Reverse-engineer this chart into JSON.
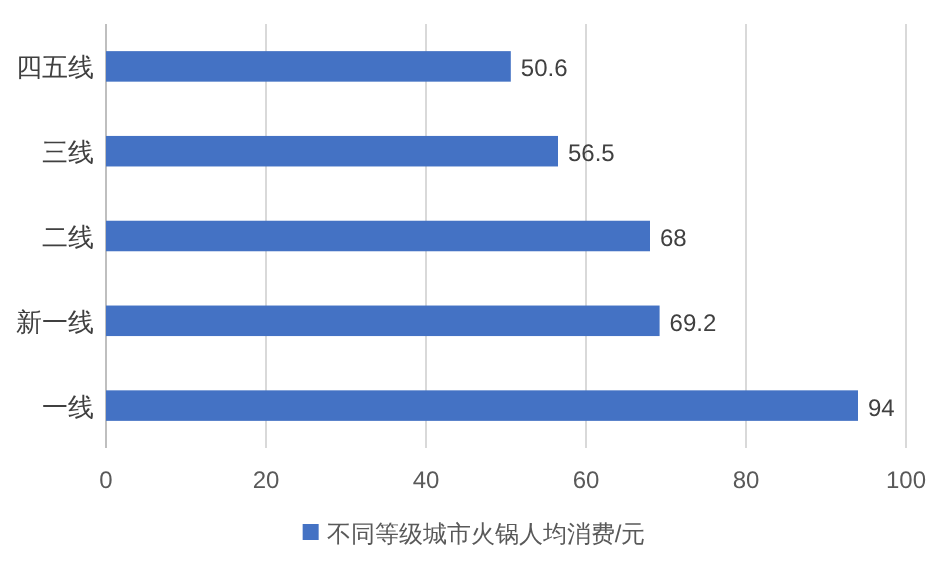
{
  "chart_data": {
    "type": "bar",
    "orientation": "horizontal",
    "categories": [
      "四五线",
      "三线",
      "二线",
      "新一线",
      "一线"
    ],
    "series": [
      {
        "name": "不同等级城市火锅人均消费/元",
        "color": "#4472c4",
        "values": [
          50.6,
          56.5,
          68,
          69.2,
          94
        ]
      }
    ],
    "xlim": [
      0,
      100
    ],
    "xticks": [
      0,
      20,
      40,
      60,
      80,
      100
    ],
    "grid": "x",
    "legend": "bottom",
    "data_labels": true
  }
}
